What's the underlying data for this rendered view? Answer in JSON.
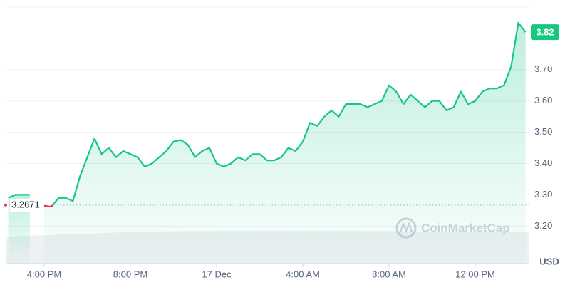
{
  "chart_data": {
    "type": "line",
    "categories": [
      null,
      null,
      null,
      null,
      null,
      "4:00 PM",
      null,
      null,
      null,
      null,
      null,
      null,
      null,
      null,
      null,
      null,
      null,
      "8:00 PM",
      null,
      null,
      null,
      null,
      null,
      null,
      null,
      null,
      null,
      null,
      null,
      "17 Dec",
      null,
      null,
      null,
      null,
      null,
      null,
      null,
      null,
      null,
      null,
      null,
      "4:00 AM",
      null,
      null,
      null,
      null,
      null,
      null,
      null,
      null,
      null,
      null,
      null,
      "8:00 AM",
      null,
      null,
      null,
      null,
      null,
      null,
      null,
      null,
      null,
      null,
      null,
      "12:00 PM",
      null,
      null,
      null,
      null,
      null,
      null,
      null
    ],
    "values": [
      3.29,
      3.3,
      3.3,
      3.3,
      null,
      3.265,
      3.262,
      3.29,
      3.29,
      3.28,
      3.36,
      3.42,
      3.48,
      3.43,
      3.45,
      3.42,
      3.44,
      3.43,
      3.42,
      3.39,
      3.4,
      3.42,
      3.44,
      3.47,
      3.475,
      3.46,
      3.42,
      3.44,
      3.45,
      3.4,
      3.39,
      3.4,
      3.42,
      3.41,
      3.43,
      3.43,
      3.41,
      3.41,
      3.42,
      3.45,
      3.44,
      3.47,
      3.53,
      3.52,
      3.55,
      3.57,
      3.55,
      3.59,
      3.59,
      3.59,
      3.58,
      3.59,
      3.6,
      3.65,
      3.63,
      3.59,
      3.62,
      3.6,
      3.58,
      3.6,
      3.6,
      3.57,
      3.58,
      3.63,
      3.59,
      3.6,
      3.63,
      3.64,
      3.64,
      3.65,
      3.71,
      3.85,
      3.82
    ],
    "color": "#16c784",
    "below_color": "#ea3943",
    "reference_price": 3.2671,
    "last_price": 3.82,
    "ylim": [
      3.08,
      3.9
    ],
    "yticks": [
      {
        "value": 3.2,
        "label": "3.20"
      },
      {
        "value": 3.3,
        "label": "3.30"
      },
      {
        "value": 3.4,
        "label": "3.40"
      },
      {
        "value": 3.5,
        "label": "3.50"
      },
      {
        "value": 3.6,
        "label": "3.60"
      },
      {
        "value": 3.7,
        "label": "3.70"
      }
    ],
    "grid": true,
    "unit": "USD",
    "watermark": "CoinMarketCap"
  }
}
